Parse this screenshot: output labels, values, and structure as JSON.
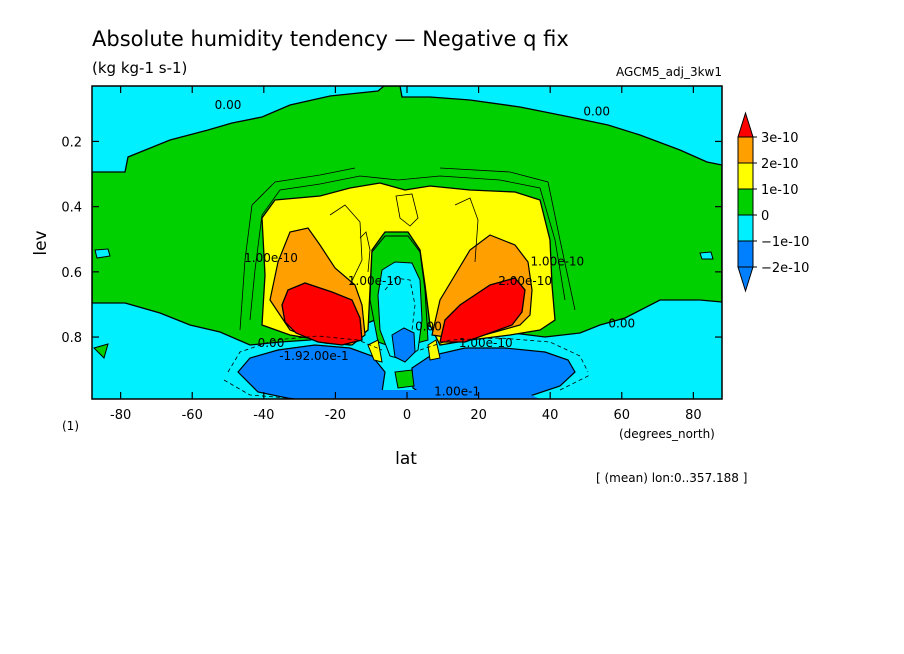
{
  "header": {
    "title": "Absolute humidity tendency — Negative q fix",
    "units": "(kg kg-1 s-1)",
    "run_name": "AGCM5_adj_3kw1"
  },
  "footer": {
    "note": "[ (mean) lon:0..357.188 ]",
    "x_units": "(degrees_north)",
    "panel_index": "(1)"
  },
  "chart_data": {
    "type": "contour",
    "xlabel": "lat",
    "ylabel": "lev",
    "xlim": [
      -88,
      88
    ],
    "ylim": [
      0.99,
      0.03
    ],
    "y_inverted": true,
    "x_ticks": [
      -80,
      -60,
      -40,
      -20,
      0,
      20,
      40,
      60,
      80
    ],
    "y_ticks": [
      0.2,
      0.4,
      0.6,
      0.8
    ],
    "color_levels": [
      {
        "label": "3e-10",
        "value": 3e-10,
        "color": "#ff0000"
      },
      {
        "label": "2e-10",
        "value": 2e-10,
        "color": "#ffa000"
      },
      {
        "label": "1e-10",
        "value": 1e-10,
        "color": "#ffff00"
      },
      {
        "label": "0",
        "value": 0,
        "color": "#00d000"
      },
      {
        "label": "−1e-10",
        "value": -1e-10,
        "color": "#00f0ff"
      },
      {
        "label": "−2e-10",
        "value": -2e-10,
        "color": "#0080ff"
      }
    ],
    "contour_labels": [
      {
        "text": "0.00",
        "lat": -50,
        "lev": 0.1
      },
      {
        "text": "0.00",
        "lat": 53,
        "lev": 0.12
      },
      {
        "text": "0.00",
        "lat": 60,
        "lev": 0.77
      },
      {
        "text": "0.00",
        "lat": -38,
        "lev": 0.83
      },
      {
        "text": "0.00",
        "lat": 6,
        "lev": 0.78
      },
      {
        "text": "1.00e-10",
        "lat": -38,
        "lev": 0.57
      },
      {
        "text": "1.00e-10",
        "lat": -9,
        "lev": 0.64
      },
      {
        "text": "2.00e-10",
        "lat": 33,
        "lev": 0.64
      },
      {
        "text": "1.00e-10",
        "lat": 42,
        "lev": 0.58
      },
      {
        "text": "1.00e-10",
        "lat": 22,
        "lev": 0.83
      },
      {
        "text": "-1.92.00e-1",
        "lat": -26,
        "lev": 0.87
      },
      {
        "text": "1.00e-1",
        "lat": 14,
        "lev": 0.98
      }
    ]
  }
}
